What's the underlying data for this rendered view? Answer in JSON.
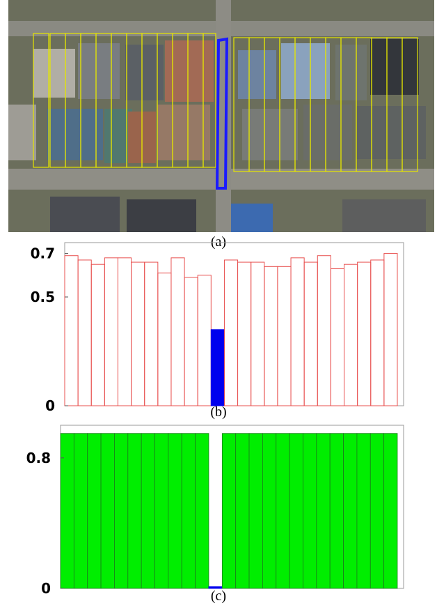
{
  "figure": {
    "captions": {
      "a": "(a)",
      "b": "(b)",
      "c": "(c)"
    }
  },
  "aerial_image": {
    "description_icon": "aerial-photo",
    "highlight_color": "#1a1aff",
    "outline_color": "#e6e600"
  },
  "chart_data": [
    {
      "type": "bar",
      "panel": "(b)",
      "x": [
        1,
        2,
        3,
        4,
        5,
        6,
        7,
        8,
        9,
        10,
        11,
        12,
        13,
        14,
        15,
        16,
        17,
        18,
        19,
        20,
        21,
        22,
        23,
        24,
        25
      ],
      "values": [
        0.69,
        0.67,
        0.65,
        0.68,
        0.68,
        0.66,
        0.66,
        0.61,
        0.68,
        0.59,
        0.6,
        0.35,
        0.67,
        0.66,
        0.66,
        0.64,
        0.64,
        0.68,
        0.66,
        0.69,
        0.63,
        0.65,
        0.66,
        0.67,
        0.7
      ],
      "highlight_index": 11,
      "ylim": [
        0,
        0.75
      ],
      "yticks": [
        0,
        0.5,
        0.7
      ],
      "ytick_labels": [
        "0",
        "0.5",
        "0.7"
      ],
      "bar_color": "#e8504f",
      "highlight_color": "#0000ee",
      "title": "",
      "xlabel": "",
      "ylabel": ""
    },
    {
      "type": "bar",
      "panel": "(c)",
      "x": [
        1,
        2,
        3,
        4,
        5,
        6,
        7,
        8,
        9,
        10,
        11,
        12,
        13,
        14,
        15,
        16,
        17,
        18,
        19,
        20,
        21,
        22,
        23,
        24,
        25
      ],
      "values": [
        0.95,
        0.95,
        0.95,
        0.95,
        0.95,
        0.95,
        0.95,
        0.95,
        0.95,
        0.95,
        0.95,
        0.01,
        0.95,
        0.95,
        0.95,
        0.95,
        0.95,
        0.95,
        0.95,
        0.95,
        0.95,
        0.95,
        0.95,
        0.95,
        0.95
      ],
      "highlight_index": 11,
      "ylim": [
        0,
        1.0
      ],
      "yticks": [
        0,
        0.8
      ],
      "ytick_labels": [
        "0",
        "0.8"
      ],
      "bar_color": "#00ee00",
      "highlight_color": "#0000ee",
      "title": "",
      "xlabel": "",
      "ylabel": ""
    }
  ]
}
